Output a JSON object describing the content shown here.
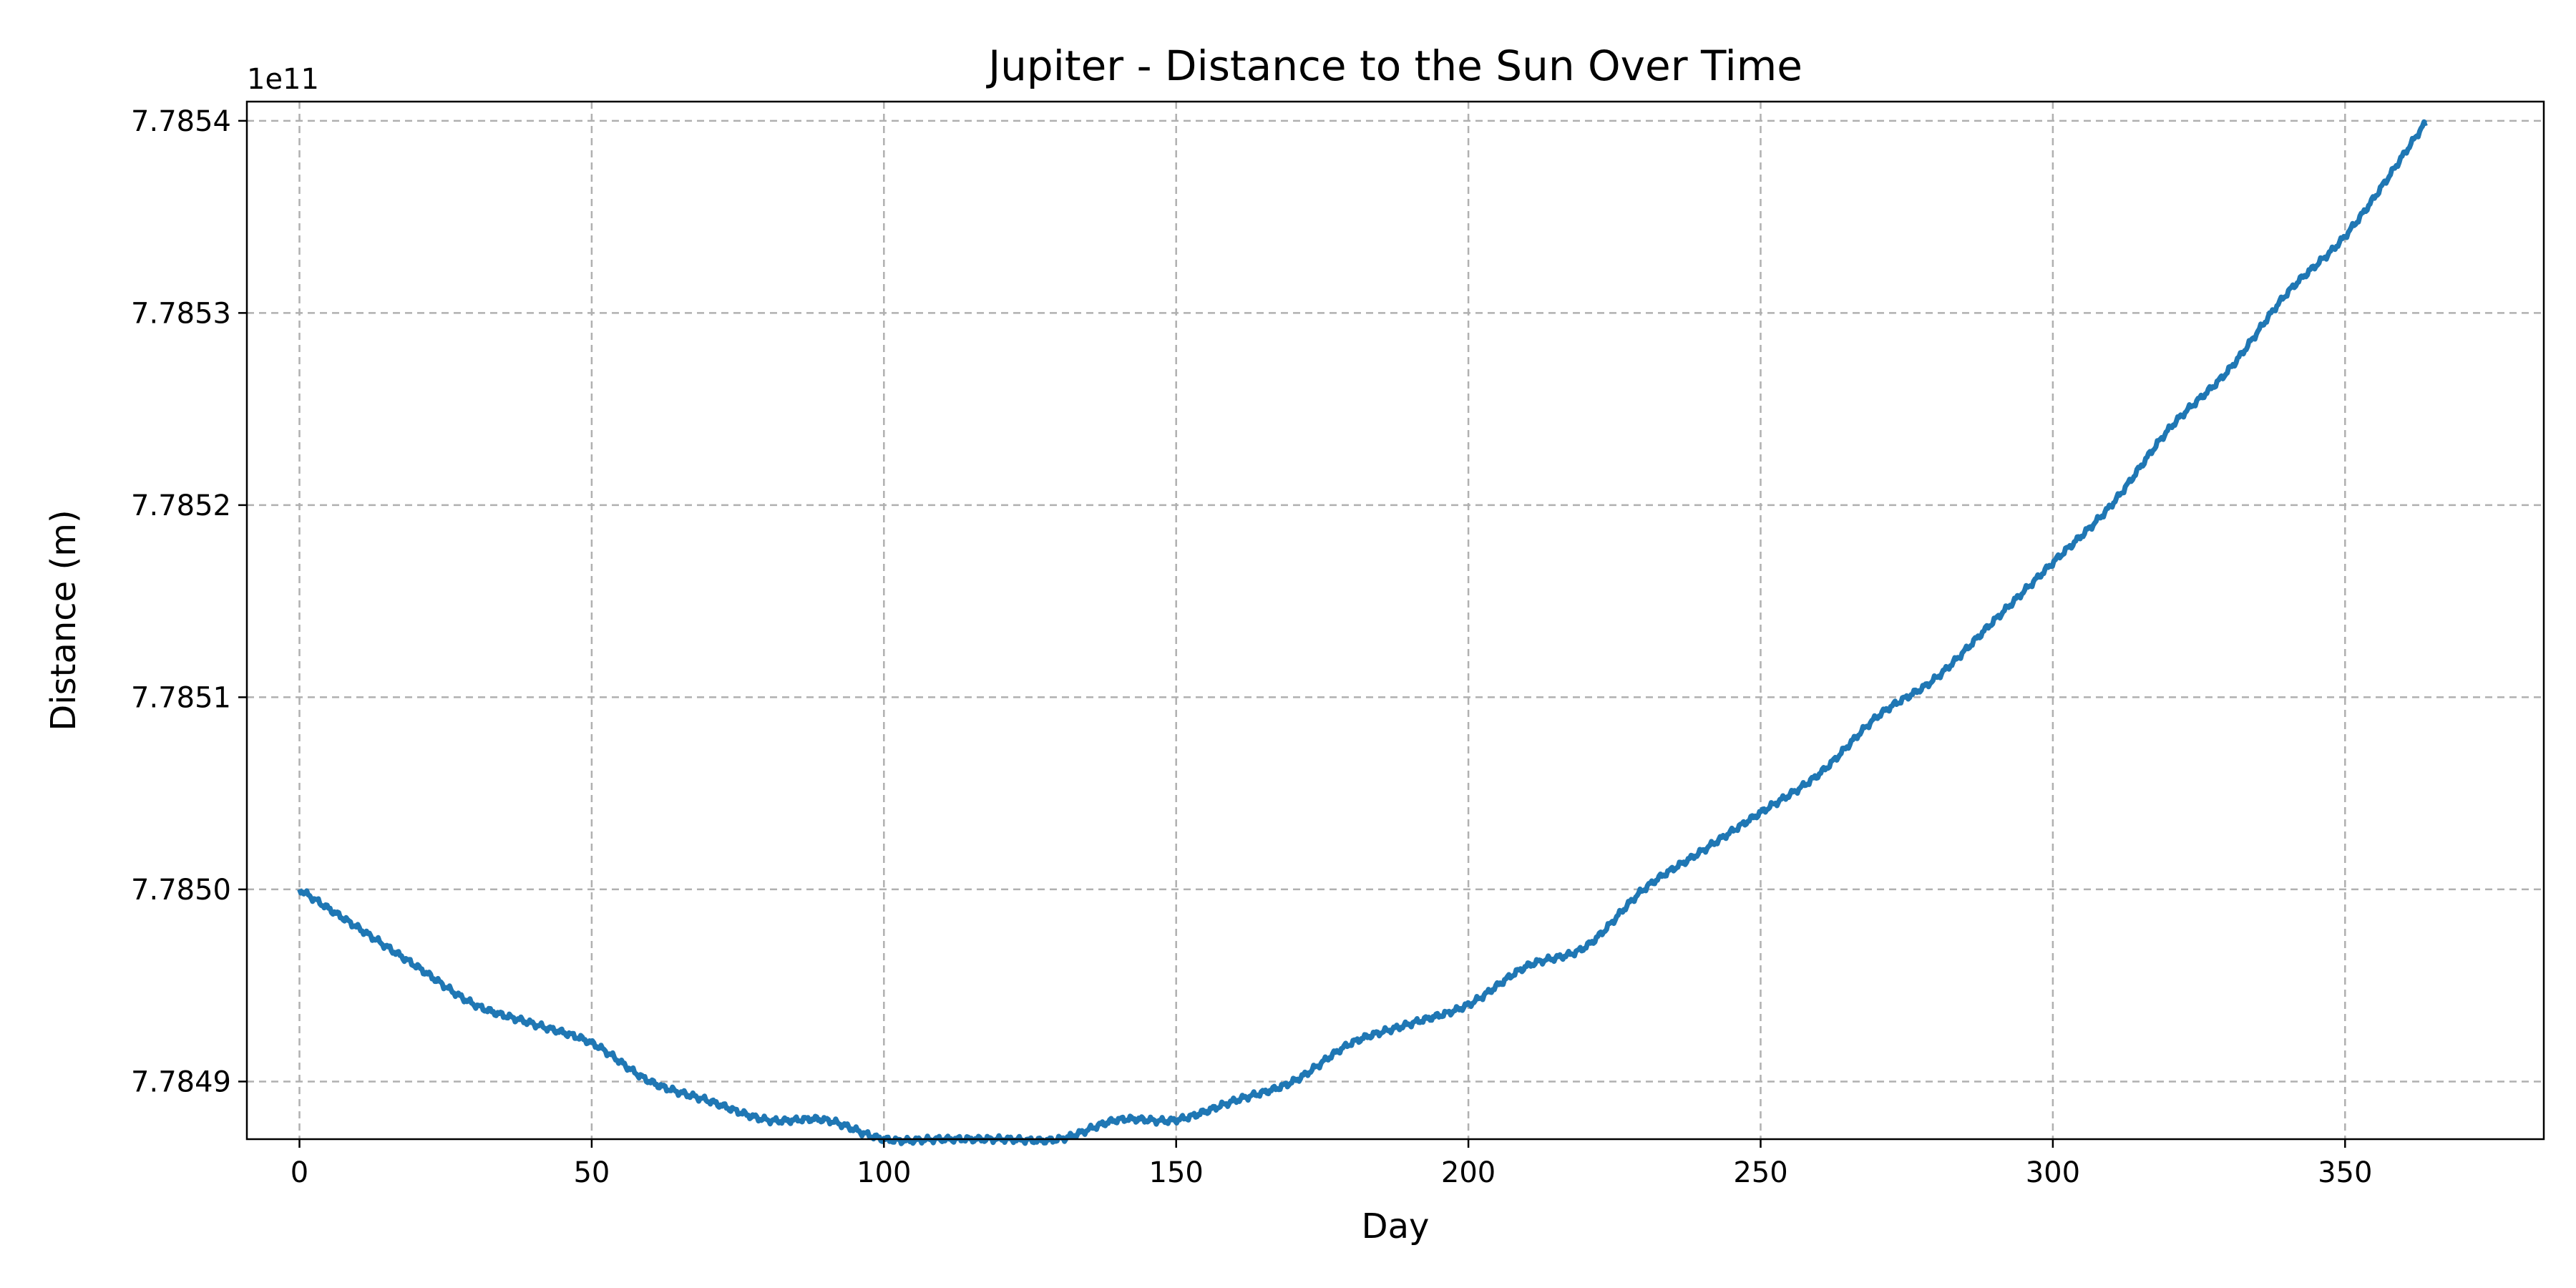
{
  "chart_data": {
    "type": "line",
    "title": "Jupiter - Distance to the Sun Over Time",
    "xlabel": "Day",
    "ylabel": "Distance (m)",
    "y_offset_label": "1e11",
    "xlim": [
      -9,
      384
    ],
    "ylim": [
      7.78487,
      7.78541
    ],
    "x_ticks": [
      0,
      50,
      100,
      150,
      200,
      250,
      300,
      350
    ],
    "x_tick_labels": [
      "0",
      "50",
      "100",
      "150",
      "200",
      "250",
      "300",
      "350"
    ],
    "y_ticks": [
      7.7849,
      7.785,
      7.7851,
      7.7852,
      7.7853,
      7.7854
    ],
    "y_tick_labels": [
      "7.7849",
      "7.7850",
      "7.7851",
      "7.7852",
      "7.7853",
      "7.7854"
    ],
    "grid": true,
    "series": [
      {
        "color": "#1f77b4",
        "x": [
          0,
          10,
          20,
          30,
          40,
          50,
          60,
          70,
          80,
          90,
          100,
          110,
          120,
          130,
          140,
          150,
          160,
          170,
          180,
          190,
          200,
          210,
          220,
          230,
          240,
          250,
          260,
          270,
          280,
          290,
          300,
          310,
          320,
          330,
          340,
          350,
          364
        ],
        "y": [
          7.785,
          7.78498,
          7.78496,
          7.78494,
          7.78493,
          7.78492,
          7.7849,
          7.78489,
          7.78488,
          7.78488,
          7.78487,
          7.78487,
          7.78487,
          7.78487,
          7.78488,
          7.78488,
          7.78489,
          7.7849,
          7.78492,
          7.78493,
          7.78494,
          7.78496,
          7.78497,
          7.785,
          7.78502,
          7.78504,
          7.78506,
          7.78509,
          7.78511,
          7.78514,
          7.78517,
          7.7852,
          7.78524,
          7.78527,
          7.78531,
          7.78534,
          7.7854
        ]
      }
    ]
  }
}
